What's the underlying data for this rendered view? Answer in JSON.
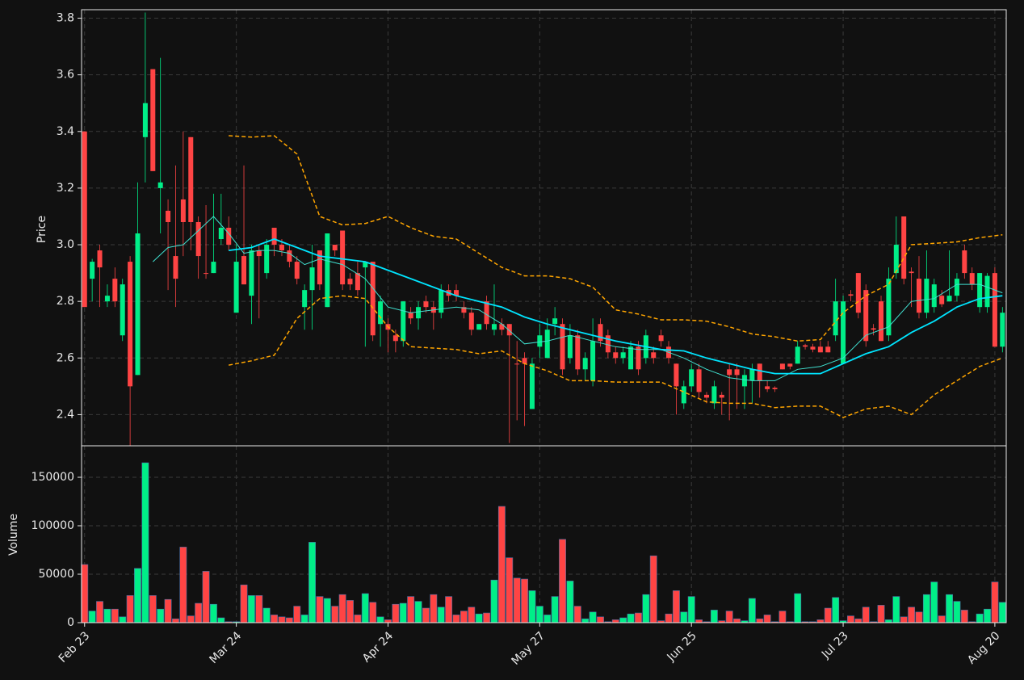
{
  "chart_data": [
    {
      "type": "candlestick",
      "ylabel": "Price",
      "ylim": [
        2.29,
        3.83
      ],
      "yticks": [
        2.4,
        2.6,
        2.8,
        {
          "value": 3,
          "label": "3.0"
        },
        3.2,
        3.4,
        3.6,
        3.8
      ],
      "grid": true,
      "up_color": "#00ee88",
      "down_color": "#ff4444",
      "open": [
        3.4,
        2.88,
        2.98,
        2.8,
        2.88,
        2.68,
        2.94,
        2.54,
        3.38,
        3.62,
        3.2,
        3.12,
        2.96,
        3.16,
        3.38,
        3.08,
        2.9,
        2.9,
        3.02,
        3.06,
        2.76,
        2.96,
        2.82,
        2.98,
        2.9,
        3.06,
        3.0,
        2.98,
        2.94,
        2.78,
        2.84,
        2.98,
        2.78,
        3.0,
        3.05,
        2.88,
        2.9,
        2.92,
        2.94,
        2.72,
        2.72,
        2.68,
        2.66,
        2.76,
        2.74,
        2.8,
        2.78,
        2.76,
        2.84,
        2.84,
        2.78,
        2.76,
        2.7,
        2.8,
        2.7,
        2.72,
        2.72,
        2.58,
        2.6,
        2.42,
        2.64,
        2.6,
        2.72,
        2.72,
        2.6,
        2.68,
        2.56,
        2.52,
        2.72,
        2.68,
        2.62,
        2.6,
        2.56,
        2.64,
        2.6,
        2.62,
        2.68,
        2.64,
        2.58,
        2.44,
        2.5,
        2.56,
        2.47,
        2.44,
        2.47,
        2.56,
        2.56,
        2.5,
        2.52,
        2.58,
        2.5,
        2.495,
        2.58,
        2.58,
        2.58,
        2.645,
        2.64,
        2.64,
        2.64,
        2.68,
        2.58,
        2.825,
        2.9,
        2.84,
        2.705,
        2.8,
        2.68,
        2.9,
        3.1,
        2.905,
        2.88,
        2.76,
        2.78,
        2.82,
        2.8,
        2.82,
        2.98,
        2.9,
        2.78,
        2.78,
        2.9,
        2.64
      ],
      "high": [
        3.4,
        2.95,
        3.0,
        2.86,
        2.92,
        2.88,
        2.96,
        3.22,
        3.82,
        3.62,
        3.66,
        3.16,
        3.28,
        3.4,
        3.38,
        3.1,
        3.14,
        3.18,
        3.18,
        3.1,
        3.0,
        3.28,
        3.0,
        3.0,
        3.02,
        3.06,
        3.02,
        3.0,
        2.96,
        2.86,
        3.0,
        2.98,
        3.04,
        3.0,
        3.05,
        2.9,
        2.94,
        2.94,
        2.94,
        2.82,
        2.74,
        2.7,
        2.8,
        2.78,
        2.8,
        2.82,
        2.8,
        2.86,
        2.86,
        2.86,
        2.8,
        2.78,
        2.72,
        2.82,
        2.86,
        2.74,
        2.72,
        2.66,
        2.62,
        2.6,
        2.72,
        2.74,
        2.78,
        2.74,
        2.72,
        2.7,
        2.62,
        2.74,
        2.74,
        2.7,
        2.64,
        2.64,
        2.66,
        2.66,
        2.7,
        2.64,
        2.7,
        2.66,
        2.58,
        2.52,
        2.58,
        2.58,
        2.48,
        2.52,
        2.48,
        2.58,
        2.58,
        2.56,
        2.58,
        2.58,
        2.52,
        2.5,
        2.58,
        2.58,
        2.66,
        2.65,
        2.65,
        2.66,
        2.66,
        2.88,
        2.82,
        2.84,
        2.9,
        2.86,
        2.72,
        2.82,
        2.92,
        3.1,
        3.1,
        2.92,
        2.96,
        2.98,
        2.88,
        2.84,
        2.98,
        2.9,
        3.0,
        2.92,
        2.9,
        2.9,
        2.92,
        2.78
      ],
      "low": [
        2.78,
        2.8,
        2.78,
        2.78,
        2.78,
        2.66,
        2.29,
        2.54,
        3.22,
        3.26,
        3.04,
        2.84,
        2.78,
        2.96,
        2.98,
        2.88,
        2.88,
        2.9,
        3.0,
        2.98,
        2.76,
        2.86,
        2.72,
        2.74,
        2.88,
        2.96,
        2.96,
        2.92,
        2.86,
        2.7,
        2.7,
        2.84,
        2.78,
        2.96,
        2.84,
        2.84,
        2.82,
        2.64,
        2.66,
        2.64,
        2.62,
        2.62,
        2.64,
        2.72,
        2.7,
        2.76,
        2.7,
        2.74,
        2.8,
        2.8,
        2.74,
        2.68,
        2.7,
        2.7,
        2.68,
        2.68,
        2.3,
        2.38,
        2.36,
        2.42,
        2.6,
        2.6,
        2.68,
        2.54,
        2.58,
        2.54,
        2.52,
        2.5,
        2.64,
        2.6,
        2.58,
        2.58,
        2.56,
        2.54,
        2.58,
        2.58,
        2.64,
        2.58,
        2.4,
        2.42,
        2.48,
        2.46,
        2.44,
        2.42,
        2.4,
        2.38,
        2.42,
        2.42,
        2.44,
        2.46,
        2.48,
        2.48,
        2.56,
        2.56,
        2.58,
        2.63,
        2.62,
        2.62,
        2.62,
        2.66,
        2.58,
        2.8,
        2.74,
        2.64,
        2.68,
        2.66,
        2.66,
        2.88,
        2.86,
        2.78,
        2.74,
        2.74,
        2.76,
        2.78,
        2.8,
        2.8,
        2.88,
        2.84,
        2.76,
        2.76,
        2.64,
        2.62
      ],
      "close": [
        2.78,
        2.94,
        2.92,
        2.82,
        2.8,
        2.86,
        2.5,
        3.04,
        3.5,
        3.26,
        3.22,
        3.08,
        2.88,
        3.08,
        3.08,
        2.96,
        2.9,
        2.94,
        3.06,
        3.0,
        2.94,
        2.86,
        2.98,
        2.96,
        3.0,
        3.0,
        2.98,
        2.94,
        2.88,
        2.84,
        2.92,
        2.86,
        3.04,
        2.98,
        2.86,
        2.86,
        2.84,
        2.94,
        2.68,
        2.8,
        2.7,
        2.66,
        2.8,
        2.74,
        2.78,
        2.78,
        2.76,
        2.84,
        2.82,
        2.82,
        2.76,
        2.7,
        2.72,
        2.72,
        2.72,
        2.7,
        2.68,
        2.58,
        2.58,
        2.58,
        2.68,
        2.7,
        2.74,
        2.56,
        2.68,
        2.56,
        2.6,
        2.66,
        2.66,
        2.62,
        2.6,
        2.62,
        2.64,
        2.56,
        2.68,
        2.6,
        2.66,
        2.6,
        2.5,
        2.5,
        2.56,
        2.48,
        2.46,
        2.5,
        2.46,
        2.54,
        2.54,
        2.54,
        2.56,
        2.52,
        2.49,
        2.49,
        2.56,
        2.57,
        2.64,
        2.64,
        2.63,
        2.62,
        2.62,
        2.8,
        2.8,
        2.82,
        2.76,
        2.66,
        2.7,
        2.66,
        2.88,
        3.0,
        2.88,
        2.9,
        2.76,
        2.88,
        2.86,
        2.79,
        2.82,
        2.88,
        2.9,
        2.86,
        2.9,
        2.89,
        2.64,
        2.76
      ],
      "lines": [
        {
          "color": "#40e0d0",
          "width": 1,
          "style": "solid",
          "x": [
            9,
            11,
            13,
            15,
            17,
            19,
            21,
            23,
            25,
            27,
            29,
            31,
            34,
            37,
            40,
            43,
            46,
            49,
            52,
            55,
            58,
            61,
            64,
            67,
            70,
            73,
            76,
            79,
            82,
            85,
            88,
            91,
            94,
            97,
            100,
            103,
            106,
            109,
            112,
            115,
            118,
            121
          ],
          "values": [
            2.94,
            2.99,
            3.0,
            3.05,
            3.1,
            3.04,
            2.97,
            2.98,
            2.98,
            2.97,
            2.93,
            2.95,
            2.93,
            2.88,
            2.78,
            2.76,
            2.77,
            2.78,
            2.77,
            2.72,
            2.65,
            2.66,
            2.68,
            2.66,
            2.64,
            2.63,
            2.63,
            2.6,
            2.56,
            2.53,
            2.52,
            2.52,
            2.56,
            2.57,
            2.6,
            2.68,
            2.71,
            2.8,
            2.81,
            2.86,
            2.86,
            2.83
          ]
        },
        {
          "color": "#00e5ff",
          "width": 1.8,
          "style": "solid",
          "x": [
            19,
            22,
            25,
            28,
            31,
            34,
            37,
            40,
            43,
            46,
            49,
            52,
            55,
            58,
            61,
            64,
            67,
            70,
            73,
            76,
            79,
            82,
            85,
            88,
            91,
            94,
            97,
            100,
            103,
            106,
            109,
            112,
            115,
            118,
            121
          ],
          "values": [
            2.98,
            2.99,
            3.02,
            2.99,
            2.96,
            2.95,
            2.94,
            2.91,
            2.88,
            2.85,
            2.82,
            2.8,
            2.78,
            2.745,
            2.72,
            2.7,
            2.68,
            2.66,
            2.645,
            2.63,
            2.625,
            2.6,
            2.58,
            2.56,
            2.545,
            2.545,
            2.545,
            2.58,
            2.615,
            2.64,
            2.69,
            2.73,
            2.78,
            2.81,
            2.82
          ]
        },
        {
          "color": "#ffa500",
          "width": 1.5,
          "style": "dashed",
          "x": [
            19,
            22,
            25,
            28,
            31,
            34,
            37,
            40,
            43,
            46,
            49,
            52,
            55,
            58,
            61,
            64,
            67,
            70,
            73,
            76,
            79,
            82,
            85,
            88,
            91,
            94,
            97,
            100,
            103,
            106,
            109,
            112,
            115,
            118,
            121
          ],
          "values": [
            3.385,
            3.38,
            3.385,
            3.32,
            3.1,
            3.07,
            3.075,
            3.1,
            3.06,
            3.03,
            3.02,
            2.97,
            2.92,
            2.89,
            2.89,
            2.88,
            2.85,
            2.77,
            2.755,
            2.735,
            2.735,
            2.73,
            2.71,
            2.685,
            2.675,
            2.66,
            2.665,
            2.76,
            2.82,
            2.86,
            3.0,
            3.005,
            3.01,
            3.025,
            3.035
          ]
        },
        {
          "color": "#ffa500",
          "width": 1.5,
          "style": "dashed",
          "x": [
            19,
            22,
            25,
            28,
            31,
            34,
            37,
            40,
            43,
            46,
            49,
            52,
            55,
            58,
            61,
            64,
            67,
            70,
            73,
            76,
            79,
            82,
            85,
            88,
            91,
            94,
            97,
            100,
            103,
            106,
            109,
            112,
            115,
            118,
            121
          ],
          "values": [
            2.575,
            2.59,
            2.61,
            2.74,
            2.81,
            2.82,
            2.81,
            2.71,
            2.64,
            2.635,
            2.63,
            2.615,
            2.625,
            2.58,
            2.555,
            2.52,
            2.52,
            2.515,
            2.515,
            2.515,
            2.48,
            2.445,
            2.44,
            2.44,
            2.425,
            2.43,
            2.43,
            2.39,
            2.42,
            2.43,
            2.4,
            2.47,
            2.52,
            2.57,
            2.6
          ]
        }
      ]
    },
    {
      "type": "bar",
      "ylabel": "Volume",
      "ylim": [
        0,
        182500
      ],
      "yticks": [
        0,
        50000,
        100000,
        150000
      ],
      "grid": true,
      "xlim": [
        -0.4,
        121.5
      ],
      "xticks": [
        {
          "value": 0,
          "label": "Feb 23"
        },
        {
          "value": 20,
          "label": "Mar 24"
        },
        {
          "value": 40,
          "label": "Apr 24"
        },
        {
          "value": 60,
          "label": "May 27"
        },
        {
          "value": 80,
          "label": "Jun 25"
        },
        {
          "value": 100,
          "label": "Jul 23"
        },
        {
          "value": 120,
          "label": "Aug 20"
        }
      ],
      "values": [
        60000,
        12000,
        22000,
        14000,
        14000,
        6000,
        28000,
        56000,
        165000,
        28000,
        14000,
        24000,
        4000,
        78000,
        7000,
        20000,
        53000,
        19000,
        5000,
        1000,
        1000,
        39000,
        28000,
        28000,
        15000,
        8000,
        6000,
        5000,
        17000,
        8000,
        83000,
        27000,
        25000,
        17000,
        29000,
        23000,
        8000,
        30000,
        21000,
        6000,
        3000,
        19000,
        20000,
        27000,
        22000,
        15000,
        29000,
        16000,
        27000,
        8000,
        12000,
        16000,
        9000,
        10000,
        44000,
        120000,
        67000,
        46000,
        45000,
        33000,
        17000,
        8000,
        27000,
        86000,
        43000,
        17000,
        4000,
        11000,
        6000,
        1000,
        3000,
        5000,
        9000,
        10000,
        29000,
        69000,
        2000,
        9000,
        33000,
        11000,
        27000,
        3000,
        1000,
        13000,
        2000,
        12000,
        4000,
        2000,
        25000,
        4000,
        8000,
        1000,
        12000,
        1000,
        30000,
        1000,
        1000,
        3000,
        15000,
        26000,
        2000,
        7000,
        4000,
        16000,
        1000,
        18000,
        3000,
        27000,
        6000,
        16000,
        11000,
        29000,
        42000,
        7000,
        29000,
        22000,
        13000,
        1000,
        9000,
        14000,
        42000,
        21000
      ]
    }
  ]
}
